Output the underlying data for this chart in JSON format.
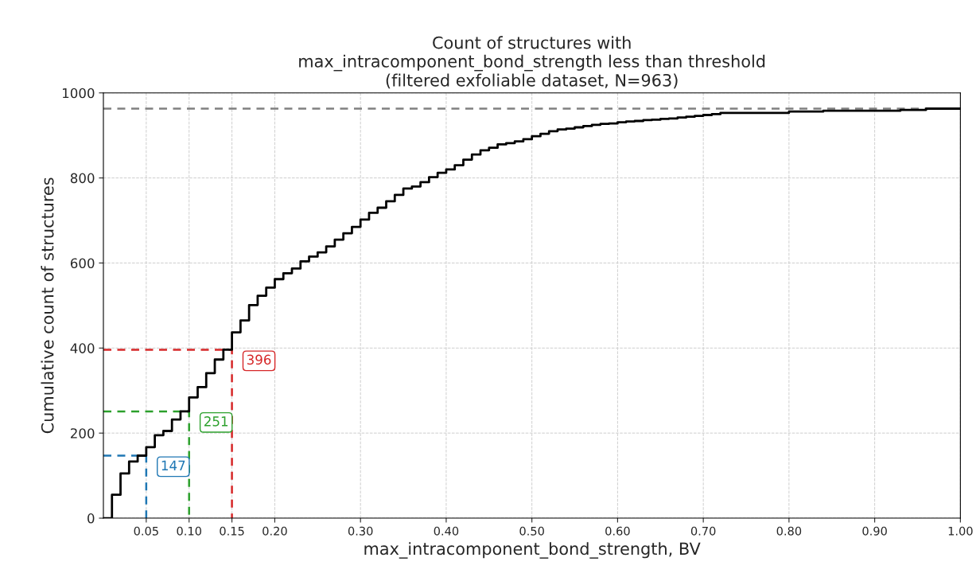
{
  "chart_data": {
    "type": "step",
    "title": "Count of structures with\nmax_intracomponent_bond_strength less than threshold\n(filtered exfoliable dataset, N=963)",
    "xlabel": "max_intracomponent_bond_strength, BV",
    "ylabel": "Cumulative count of structures",
    "xlim": [
      0,
      1.0
    ],
    "xticks": [
      {
        "value": 0.05,
        "label": "0.05"
      },
      {
        "value": 0.1,
        "label": "0.10"
      },
      {
        "value": 0.15,
        "label": "0.15"
      },
      {
        "value": 0.2,
        "label": "0.20"
      },
      {
        "value": 0.3,
        "label": "0.30"
      },
      {
        "value": 0.4,
        "label": "0.40"
      },
      {
        "value": 0.5,
        "label": "0.50"
      },
      {
        "value": 0.6,
        "label": "0.60"
      },
      {
        "value": 0.7,
        "label": "0.70"
      },
      {
        "value": 0.8,
        "label": "0.80"
      },
      {
        "value": 0.9,
        "label": "0.90"
      },
      {
        "value": 1.0,
        "label": "1.00"
      }
    ],
    "ylim": [
      0,
      1000
    ],
    "yticks": [
      0,
      200,
      400,
      600,
      800,
      1000
    ],
    "grid": true,
    "series": [
      {
        "color": "#000000",
        "line_style": "solid",
        "x": [
          0.0,
          0.01,
          0.02,
          0.03,
          0.04,
          0.05,
          0.06,
          0.07,
          0.08,
          0.09,
          0.1,
          0.11,
          0.12,
          0.13,
          0.14,
          0.15,
          0.16,
          0.17,
          0.18,
          0.19,
          0.2,
          0.21,
          0.22,
          0.23,
          0.24,
          0.25,
          0.26,
          0.27,
          0.28,
          0.29,
          0.3,
          0.31,
          0.32,
          0.33,
          0.34,
          0.35,
          0.36,
          0.37,
          0.38,
          0.39,
          0.4,
          0.41,
          0.42,
          0.43,
          0.44,
          0.45,
          0.46,
          0.47,
          0.48,
          0.49,
          0.5,
          0.51,
          0.52,
          0.53,
          0.54,
          0.55,
          0.56,
          0.57,
          0.58,
          0.59,
          0.6,
          0.61,
          0.62,
          0.63,
          0.64,
          0.65,
          0.66,
          0.67,
          0.68,
          0.69,
          0.7,
          0.71,
          0.72,
          0.73,
          0.74,
          0.75,
          0.76,
          0.77,
          0.78,
          0.79,
          0.8,
          0.81,
          0.82,
          0.83,
          0.84,
          0.85,
          0.86,
          0.87,
          0.88,
          0.89,
          0.9,
          0.91,
          0.92,
          0.93,
          0.94,
          0.95,
          0.96,
          0.97,
          0.98,
          0.99,
          1.0
        ],
        "values": [
          0,
          55,
          105,
          133,
          147,
          167,
          195,
          205,
          232,
          251,
          284,
          308,
          341,
          373,
          396,
          437,
          465,
          501,
          523,
          542,
          562,
          576,
          587,
          604,
          615,
          625,
          639,
          655,
          670,
          685,
          702,
          718,
          730,
          745,
          760,
          775,
          780,
          790,
          802,
          812,
          820,
          830,
          843,
          855,
          865,
          871,
          879,
          882,
          886,
          891,
          898,
          904,
          910,
          914,
          916,
          919,
          922,
          925,
          927,
          928,
          931,
          933,
          934,
          936,
          937,
          939,
          940,
          942,
          944,
          946,
          948,
          950,
          953,
          953,
          953,
          953,
          953,
          953,
          953,
          953,
          956,
          956,
          956,
          956,
          958,
          958,
          958,
          958,
          958,
          958,
          958,
          958,
          958,
          960,
          960,
          960,
          963,
          963,
          963,
          963,
          963
        ]
      },
      {
        "type": "line",
        "color": "#1f77b4",
        "line_style": "dashed",
        "x": [
          0,
          0.05,
          0.05
        ],
        "values": [
          147,
          147,
          0
        ]
      },
      {
        "type": "line",
        "color": "#2ca02c",
        "line_style": "dashed",
        "x": [
          0,
          0.1,
          0.1
        ],
        "values": [
          251,
          251,
          0
        ]
      },
      {
        "type": "line",
        "color": "#d62728",
        "line_style": "dashed",
        "x": [
          0,
          0.15,
          0.15
        ],
        "values": [
          396,
          396,
          0
        ]
      }
    ],
    "ref_lines": [
      {
        "axis": "y",
        "value": 963,
        "color": "#808080",
        "line_style": "dashed"
      }
    ],
    "annotations": [
      {
        "text": "147",
        "x": 0.05,
        "y": 147
      },
      {
        "text": "251",
        "x": 0.1,
        "y": 251
      },
      {
        "text": "396",
        "x": 0.15,
        "y": 396
      }
    ]
  }
}
